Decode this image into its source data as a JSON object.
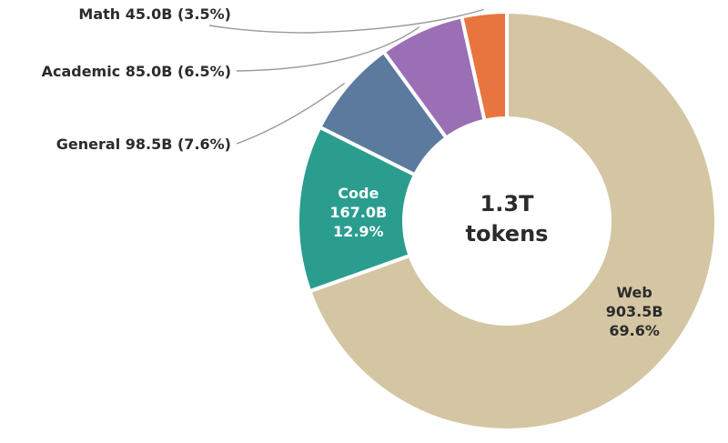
{
  "chart_data": {
    "type": "pie",
    "donut": true,
    "center_label": [
      "1.3T",
      "tokens"
    ],
    "slices": [
      {
        "name": "Web",
        "value": 903.5,
        "value_label": "903.5B",
        "percent_label": "69.6%",
        "color": "#D4C6A3",
        "text_color": "#2b2b2b",
        "label_position": "inside"
      },
      {
        "name": "Code",
        "value": 167.0,
        "value_label": "167.0B",
        "percent_label": "12.9%",
        "color": "#2A9D8F",
        "text_color": "#ffffff",
        "label_position": "inside"
      },
      {
        "name": "General",
        "value": 98.5,
        "value_label": "98.5B",
        "percent_label": "(7.6%)",
        "color": "#5B7A9E",
        "label_position": "outside"
      },
      {
        "name": "Academic",
        "value": 85.0,
        "value_label": "85.0B",
        "percent_label": "(6.5%)",
        "color": "#9B6FB5",
        "label_position": "outside"
      },
      {
        "name": "Math",
        "value": 45.0,
        "value_label": "45.0B",
        "percent_label": "(3.5%)",
        "color": "#E8743F",
        "label_position": "outside"
      }
    ],
    "start_direction": "top",
    "direction": "clockwise",
    "legend": "none"
  }
}
